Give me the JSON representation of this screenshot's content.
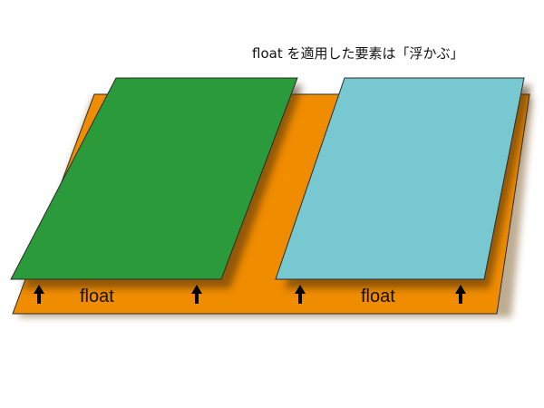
{
  "caption": "float を適用した要素は「浮かぶ」",
  "labels": {
    "left": "float",
    "right": "float"
  },
  "colors": {
    "base_layer": "#f08c00",
    "green_block": "#2a9a3a",
    "blue_block": "#78c8d2",
    "shadow": "#6e4a10",
    "stroke": "#2b2b2b",
    "arrow": "#000000"
  },
  "icons": {
    "arrows": [
      "up-arrow-icon",
      "up-arrow-icon",
      "up-arrow-icon",
      "up-arrow-icon"
    ]
  }
}
